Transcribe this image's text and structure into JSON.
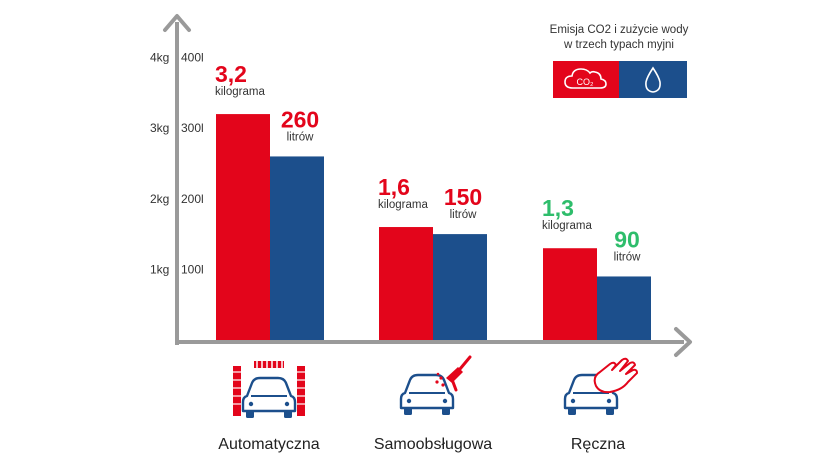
{
  "colors": {
    "co2": "#e3051b",
    "water": "#1c4f8c",
    "axis": "#9a9a9a",
    "label_red": "#e3051b",
    "label_green": "#2ebd6b"
  },
  "legend": {
    "line1": "Emisja CO2 i zużycie wody",
    "line2": "w trzech typach myjni",
    "co2_icon_text": "CO₂",
    "co2_icon": "cloud-co2-icon",
    "water_icon": "water-drop-icon"
  },
  "chart_data": {
    "type": "bar",
    "categories": [
      "Automatyczna",
      "Samoobsługowa",
      "Ręczna"
    ],
    "category_icons": [
      "car-wash-brush-icon",
      "car-spray-gun-icon",
      "car-hand-wash-icon"
    ],
    "y_axis_left": {
      "ticks": [
        "1kg",
        "2kg",
        "3kg",
        "4kg"
      ],
      "values": [
        1,
        2,
        3,
        4
      ],
      "unit": "kg"
    },
    "y_axis_right": {
      "ticks": [
        "100l",
        "200l",
        "300l",
        "400l"
      ],
      "values": [
        100,
        200,
        300,
        400
      ],
      "unit": "l"
    },
    "ylim_kg": [
      0,
      4
    ],
    "ylim_l": [
      0,
      400
    ],
    "series": [
      {
        "key": "co2",
        "values": [
          3.2,
          1.6,
          1.3
        ],
        "labels": [
          "3,2",
          "1,6",
          "1,3"
        ],
        "unit_label": "kilograma"
      },
      {
        "key": "water",
        "values": [
          260,
          150,
          90
        ],
        "labels": [
          "260",
          "150",
          "90"
        ],
        "unit_label": "litrów"
      }
    ]
  }
}
